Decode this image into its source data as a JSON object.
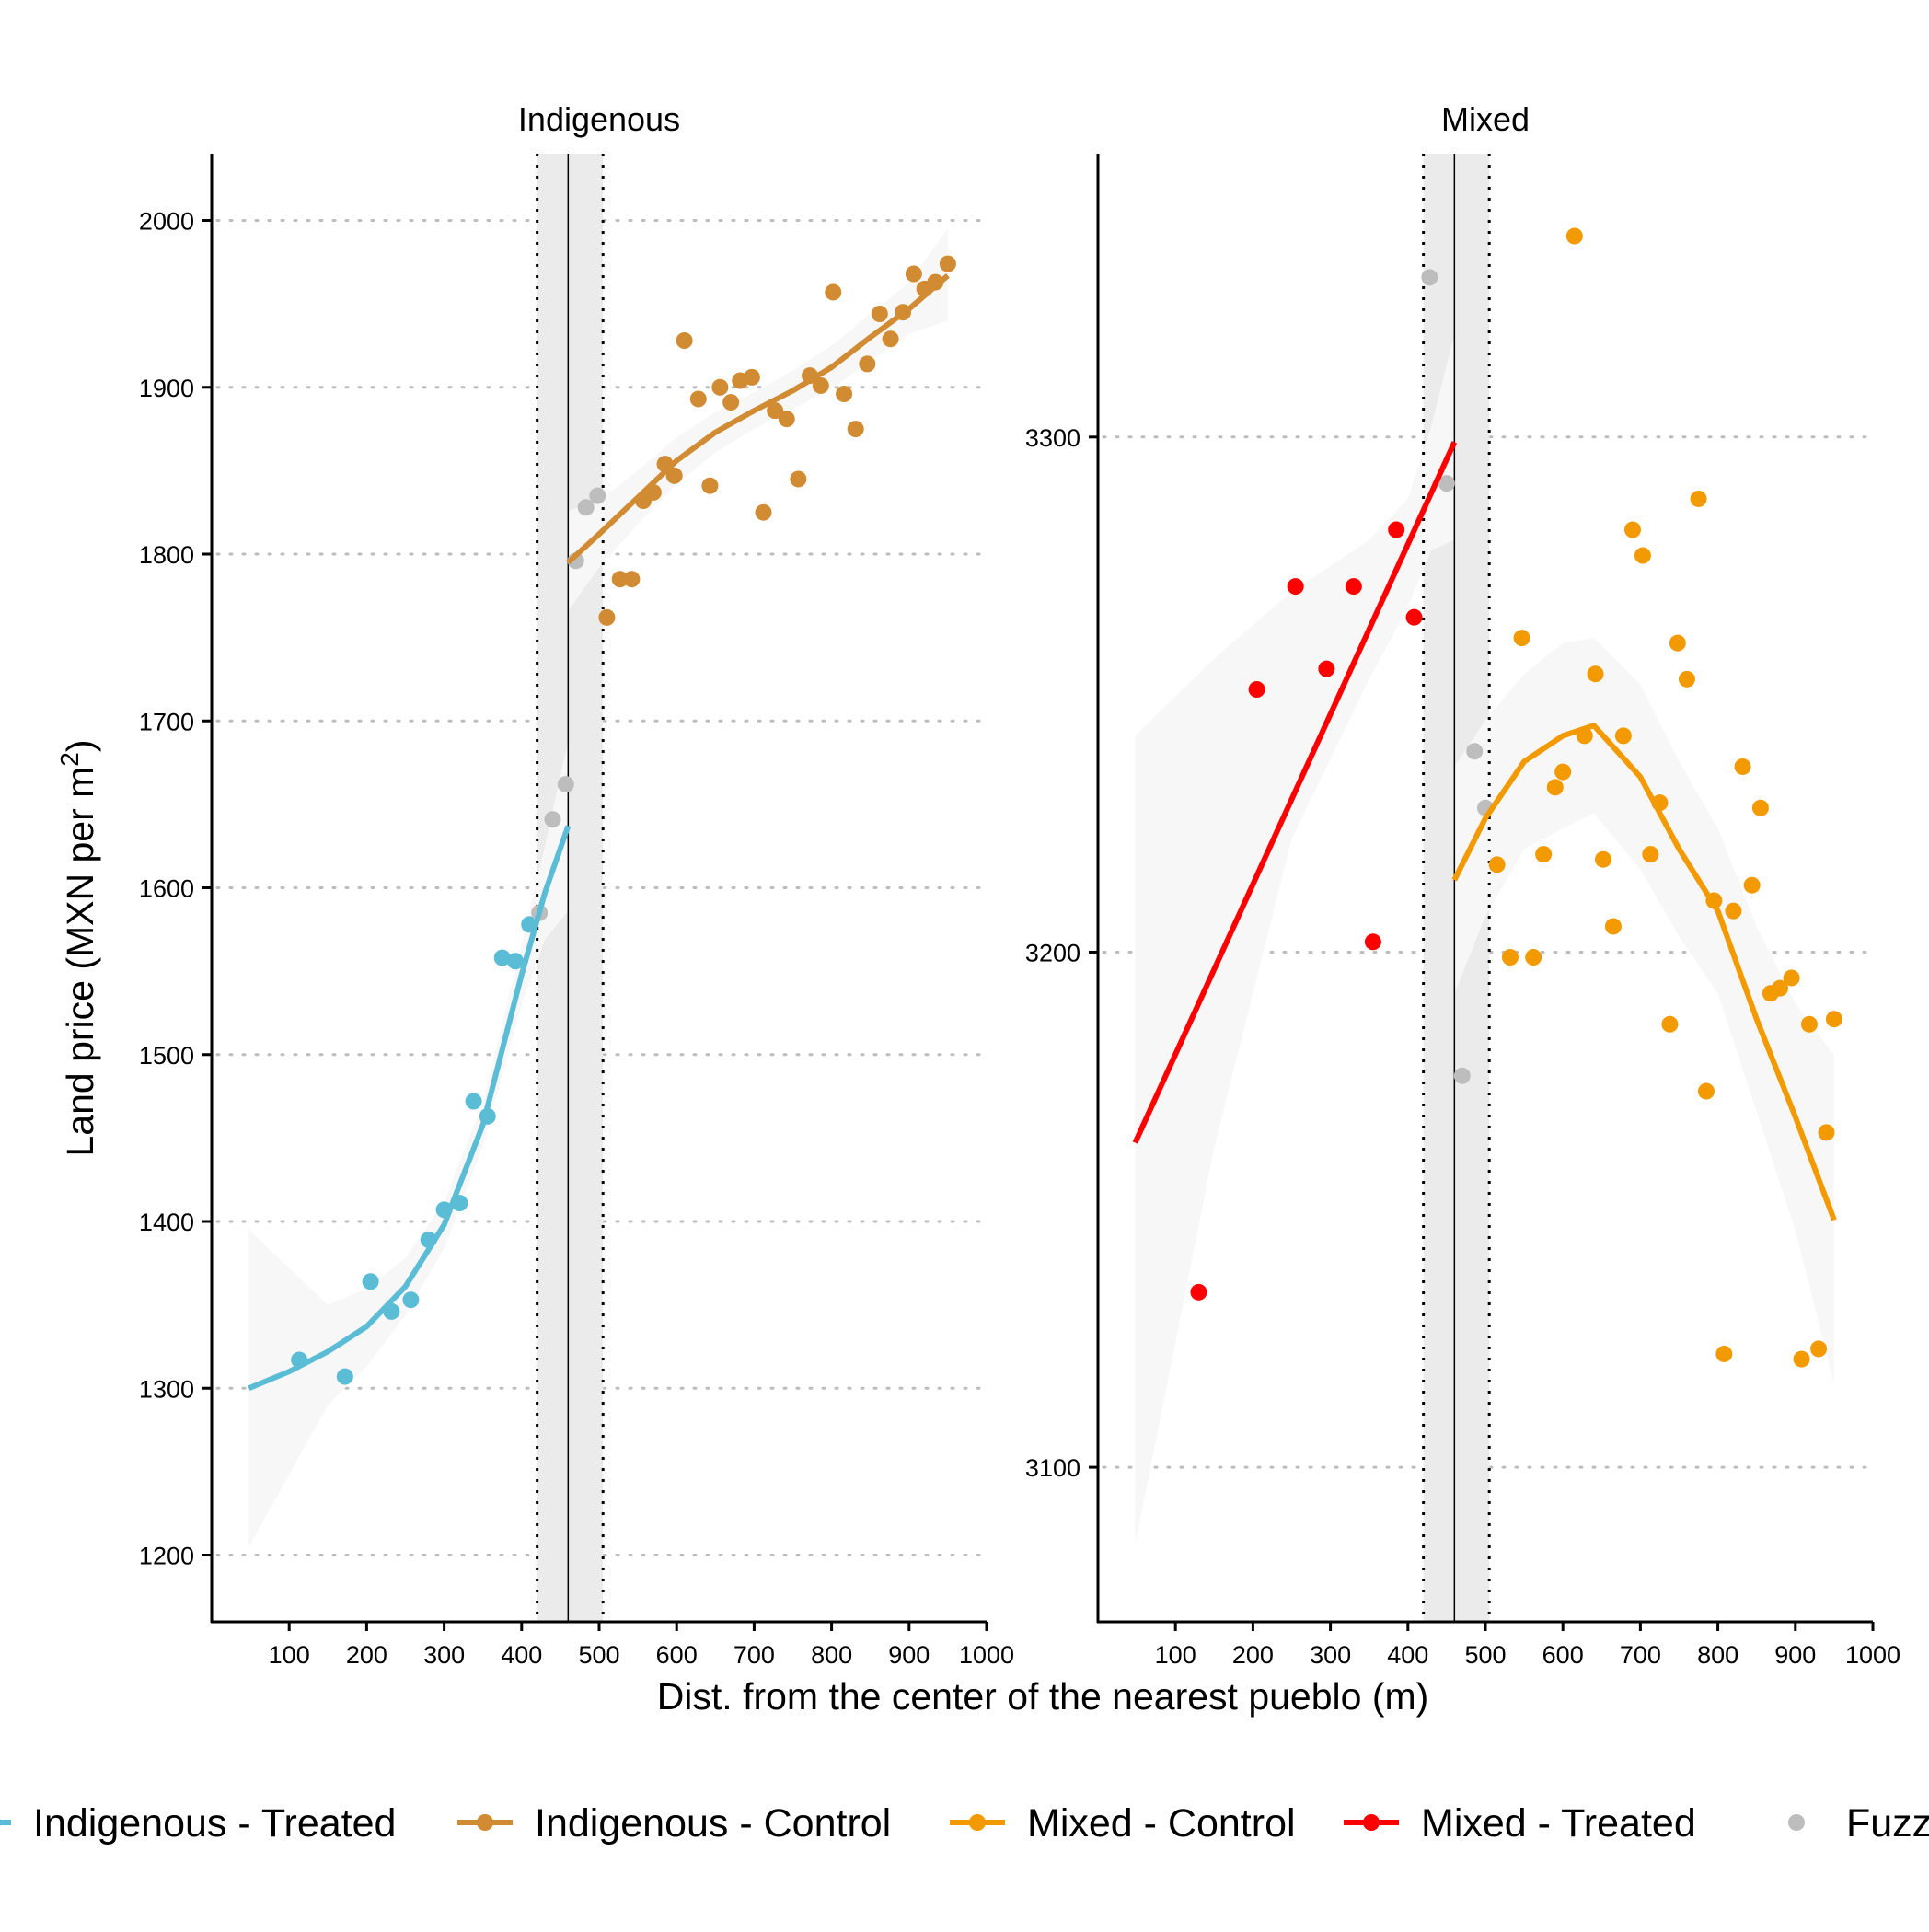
{
  "colors": {
    "indigenous_treated": "#5bbcd6",
    "indigenous_control": "#d08b33",
    "mixed_control": "#f29a00",
    "mixed_treated": "#ff0000",
    "fuzzy": "#bdbdbd",
    "band": "#ebebeb",
    "ci": "#f7f7f7",
    "grid": "#bdbdbd"
  },
  "chart_data": {
    "type": "scatter",
    "xlabel": "Dist. from the center of the nearest pueblo (m)",
    "ylabel": "Land price (MXN per m²)",
    "ylabel_main": "Land price (MXN per m",
    "ylabel_sup": "2",
    "ylabel_end": ")",
    "legend_position": "bottom",
    "legend": [
      {
        "key": "indigenous_treated",
        "label": "Indigenous - Treated",
        "line": true
      },
      {
        "key": "indigenous_control",
        "label": "Indigenous - Control",
        "line": true
      },
      {
        "key": "mixed_control",
        "label": "Mixed - Control",
        "line": true
      },
      {
        "key": "mixed_treated",
        "label": "Mixed - Treated",
        "line": true
      },
      {
        "key": "fuzzy",
        "label": "Fuzzy",
        "line": false
      }
    ],
    "panels": [
      {
        "title": "Indigenous",
        "xlim": [
          0,
          1000
        ],
        "ylim": [
          1160,
          2040
        ],
        "x_ticks": [
          100,
          200,
          300,
          400,
          500,
          600,
          700,
          800,
          900,
          1000
        ],
        "y_ticks": [
          1200,
          1300,
          1400,
          1500,
          1600,
          1700,
          1800,
          1900,
          2000
        ],
        "cutoff": 460,
        "band": [
          420,
          505
        ],
        "series": [
          {
            "key": "indigenous_treated",
            "points": [
              [
                113,
                1317
              ],
              [
                172,
                1307
              ],
              [
                205,
                1364
              ],
              [
                232,
                1346
              ],
              [
                257,
                1353
              ],
              [
                280,
                1389
              ],
              [
                300,
                1407
              ],
              [
                320,
                1411
              ],
              [
                338,
                1472
              ],
              [
                356,
                1463
              ],
              [
                375,
                1558
              ],
              [
                392,
                1556
              ],
              [
                410,
                1578
              ]
            ],
            "fit": [
              [
                48,
                1300
              ],
              [
                100,
                1310
              ],
              [
                150,
                1322
              ],
              [
                200,
                1337
              ],
              [
                250,
                1361
              ],
              [
                300,
                1398
              ],
              [
                350,
                1458
              ],
              [
                400,
                1548
              ],
              [
                430,
                1597
              ],
              [
                460,
                1637
              ]
            ],
            "ci_upper": [
              [
                48,
                1395
              ],
              [
                150,
                1350
              ],
              [
                200,
                1360
              ],
              [
                250,
                1378
              ],
              [
                300,
                1412
              ],
              [
                350,
                1471
              ],
              [
                400,
                1566
              ],
              [
                430,
                1625
              ],
              [
                460,
                1688
              ]
            ],
            "ci_lower": [
              [
                48,
                1205
              ],
              [
                150,
                1290
              ],
              [
                200,
                1313
              ],
              [
                250,
                1344
              ],
              [
                300,
                1384
              ],
              [
                350,
                1445
              ],
              [
                400,
                1530
              ],
              [
                430,
                1569
              ],
              [
                460,
                1586
              ]
            ]
          },
          {
            "key": "indigenous_control",
            "points": [
              [
                510,
                1762
              ],
              [
                527,
                1785
              ],
              [
                542,
                1785
              ],
              [
                557,
                1832
              ],
              [
                570,
                1837
              ],
              [
                585,
                1854
              ],
              [
                597,
                1847
              ],
              [
                610,
                1928
              ],
              [
                628,
                1893
              ],
              [
                643,
                1841
              ],
              [
                656,
                1900
              ],
              [
                670,
                1891
              ],
              [
                682,
                1904
              ],
              [
                697,
                1906
              ],
              [
                712,
                1825
              ],
              [
                727,
                1886
              ],
              [
                742,
                1881
              ],
              [
                757,
                1845
              ],
              [
                772,
                1907
              ],
              [
                786,
                1901
              ],
              [
                802,
                1957
              ],
              [
                816,
                1896
              ],
              [
                831,
                1875
              ],
              [
                846,
                1914
              ],
              [
                862,
                1944
              ],
              [
                876,
                1929
              ],
              [
                892,
                1945
              ],
              [
                906,
                1968
              ],
              [
                920,
                1959
              ],
              [
                934,
                1963
              ],
              [
                950,
                1974
              ]
            ],
            "fit": [
              [
                460,
                1795
              ],
              [
                500,
                1812
              ],
              [
                550,
                1834
              ],
              [
                600,
                1856
              ],
              [
                650,
                1873
              ],
              [
                700,
                1886
              ],
              [
                750,
                1898
              ],
              [
                800,
                1912
              ],
              [
                850,
                1930
              ],
              [
                900,
                1947
              ],
              [
                950,
                1967
              ]
            ],
            "ci_upper": [
              [
                460,
                1826
              ],
              [
                500,
                1832
              ],
              [
                550,
                1850
              ],
              [
                600,
                1870
              ],
              [
                650,
                1885
              ],
              [
                700,
                1897
              ],
              [
                750,
                1910
              ],
              [
                800,
                1925
              ],
              [
                850,
                1944
              ],
              [
                900,
                1963
              ],
              [
                950,
                1995
              ]
            ],
            "ci_lower": [
              [
                460,
                1766
              ],
              [
                500,
                1792
              ],
              [
                550,
                1818
              ],
              [
                600,
                1842
              ],
              [
                650,
                1861
              ],
              [
                700,
                1875
              ],
              [
                750,
                1887
              ],
              [
                800,
                1899
              ],
              [
                850,
                1916
              ],
              [
                900,
                1932
              ],
              [
                950,
                1940
              ]
            ]
          },
          {
            "key": "fuzzy",
            "points": [
              [
                423,
                1585
              ],
              [
                440,
                1641
              ],
              [
                457,
                1662
              ],
              [
                470,
                1796
              ],
              [
                483,
                1828
              ],
              [
                498,
                1835
              ]
            ]
          }
        ]
      },
      {
        "title": "Mixed",
        "xlim": [
          0,
          1000
        ],
        "ylim": [
          3070,
          3355
        ],
        "x_ticks": [
          100,
          200,
          300,
          400,
          500,
          600,
          700,
          800,
          900,
          1000
        ],
        "y_ticks": [
          3100,
          3200,
          3300
        ],
        "cutoff": 460,
        "band": [
          420,
          505
        ],
        "series": [
          {
            "key": "mixed_treated",
            "points": [
              [
                130,
                3134
              ],
              [
                205,
                3251
              ],
              [
                255,
                3271
              ],
              [
                295,
                3255
              ],
              [
                330,
                3271
              ],
              [
                355,
                3202
              ],
              [
                385,
                3282
              ],
              [
                408,
                3265
              ]
            ],
            "fit": [
              [
                48,
                3163
              ],
              [
                460,
                3299
              ]
            ],
            "ci_upper": [
              [
                48,
                3242
              ],
              [
                150,
                3257
              ],
              [
                250,
                3270
              ],
              [
                350,
                3280
              ],
              [
                400,
                3288
              ],
              [
                430,
                3302
              ],
              [
                460,
                3320
              ]
            ],
            "ci_lower": [
              [
                48,
                3085
              ],
              [
                150,
                3162
              ],
              [
                250,
                3222
              ],
              [
                350,
                3253
              ],
              [
                400,
                3267
              ],
              [
                430,
                3278
              ],
              [
                460,
                3280
              ]
            ]
          },
          {
            "key": "mixed_control",
            "points": [
              [
                515,
                3217
              ],
              [
                532,
                3199
              ],
              [
                547,
                3261
              ],
              [
                562,
                3199
              ],
              [
                575,
                3219
              ],
              [
                590,
                3232
              ],
              [
                600,
                3235
              ],
              [
                615,
                3339
              ],
              [
                628,
                3242
              ],
              [
                642,
                3254
              ],
              [
                652,
                3218
              ],
              [
                665,
                3205
              ],
              [
                678,
                3242
              ],
              [
                690,
                3282
              ],
              [
                703,
                3277
              ],
              [
                713,
                3219
              ],
              [
                725,
                3229
              ],
              [
                738,
                3186
              ],
              [
                748,
                3260
              ],
              [
                760,
                3253
              ],
              [
                775,
                3288
              ],
              [
                785,
                3173
              ],
              [
                795,
                3210
              ],
              [
                808,
                3122
              ],
              [
                820,
                3208
              ],
              [
                832,
                3236
              ],
              [
                844,
                3213
              ],
              [
                855,
                3228
              ],
              [
                868,
                3192
              ],
              [
                880,
                3193
              ],
              [
                895,
                3195
              ],
              [
                908,
                3121
              ],
              [
                918,
                3186
              ],
              [
                930,
                3123
              ],
              [
                940,
                3165
              ],
              [
                950,
                3187
              ]
            ],
            "fit": [
              [
                460,
                3214
              ],
              [
                500,
                3226
              ],
              [
                550,
                3237
              ],
              [
                600,
                3242
              ],
              [
                640,
                3244
              ],
              [
                700,
                3234
              ],
              [
                750,
                3220
              ],
              [
                800,
                3208
              ],
              [
                850,
                3187
              ],
              [
                900,
                3168
              ],
              [
                950,
                3148
              ]
            ],
            "ci_upper": [
              [
                460,
                3236
              ],
              [
                500,
                3245
              ],
              [
                550,
                3254
              ],
              [
                600,
                3260
              ],
              [
                640,
                3261
              ],
              [
                700,
                3252
              ],
              [
                750,
                3237
              ],
              [
                800,
                3224
              ],
              [
                850,
                3205
              ],
              [
                900,
                3190
              ],
              [
                950,
                3180
              ]
            ],
            "ci_lower": [
              [
                460,
                3192
              ],
              [
                500,
                3207
              ],
              [
                550,
                3220
              ],
              [
                600,
                3224
              ],
              [
                640,
                3227
              ],
              [
                700,
                3216
              ],
              [
                750,
                3203
              ],
              [
                800,
                3192
              ],
              [
                850,
                3169
              ],
              [
                900,
                3146
              ],
              [
                950,
                3116
              ]
            ]
          },
          {
            "key": "fuzzy",
            "points": [
              [
                428,
                3331
              ],
              [
                450,
                3291
              ],
              [
                470,
                3176
              ],
              [
                486,
                3239
              ],
              [
                500,
                3228
              ]
            ]
          }
        ]
      }
    ]
  }
}
